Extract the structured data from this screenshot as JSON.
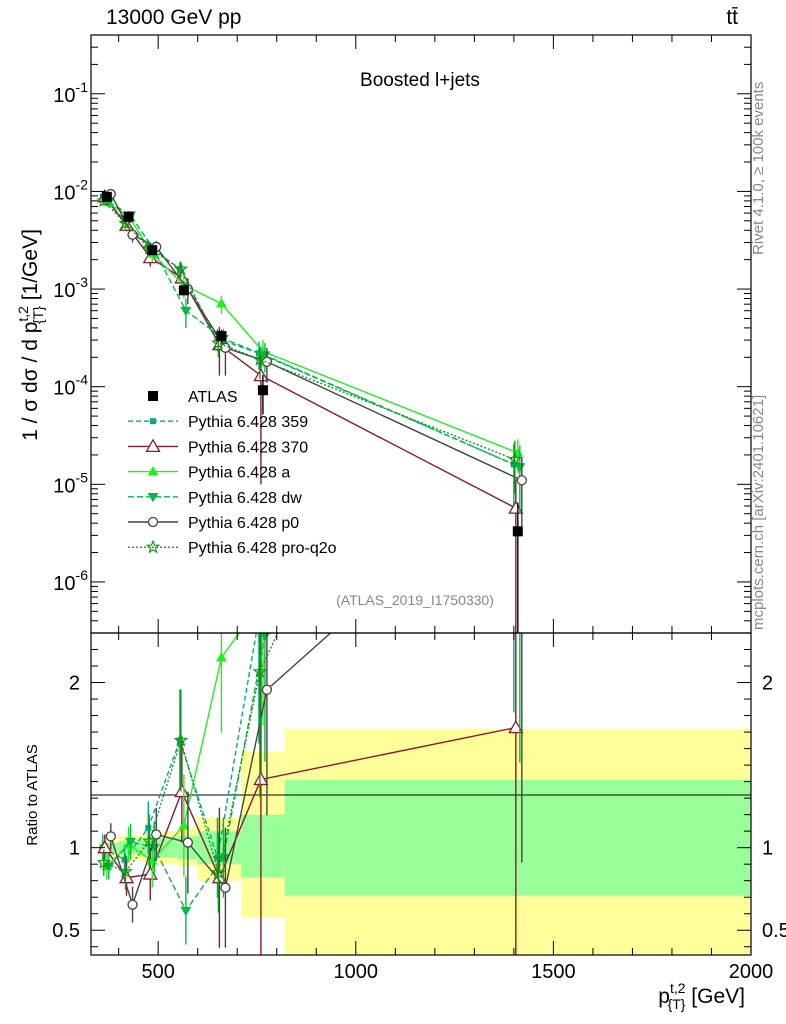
{
  "header": {
    "left": "13000 GeV pp",
    "right": "tt̄"
  },
  "side_labels": {
    "rivet": "Rivet 4.1.0, ≥ 100k events",
    "mcplots": "mcplots.cern.ch [arXiv:2401.10621]"
  },
  "analysis_id": "(ATLAS_2019_I1750330)",
  "chart_data": {
    "type": "line",
    "title": "Boosted l+jets",
    "xlabel": "p_{T}^{t,2} [GeV]",
    "x_ticks": [
      "500",
      "1000",
      "1500",
      "2000"
    ],
    "xlim": [
      330,
      2000
    ],
    "top_panel": {
      "ylabel": "1 / σ dσ / d p_{T}^{t,2} [1/GeV]",
      "yscale": "log",
      "ylim": [
        3e-07,
        0.4
      ],
      "y_ticks": [
        "10^{-6}",
        "10^{-5}",
        "10^{-4}",
        "10^{-3}",
        "10^{-2}",
        "10^{-1}"
      ]
    },
    "ratio_panel": {
      "ylabel": "Ratio to ATLAS",
      "ylim": [
        0.35,
        2.3
      ],
      "y_ticks": [
        "0.5",
        "1",
        "2"
      ],
      "bands": [
        {
          "x": [
            350,
            400
          ],
          "inner": [
            0.97,
            1.03
          ],
          "outer": [
            0.95,
            1.05
          ]
        },
        {
          "x": [
            400,
            450
          ],
          "inner": [
            0.96,
            1.04
          ],
          "outer": [
            0.93,
            1.07
          ]
        },
        {
          "x": [
            450,
            500
          ],
          "inner": [
            0.95,
            1.05
          ],
          "outer": [
            0.92,
            1.08
          ]
        },
        {
          "x": [
            500,
            550
          ],
          "inner": [
            0.94,
            1.06
          ],
          "outer": [
            0.9,
            1.1
          ]
        },
        {
          "x": [
            550,
            600
          ],
          "inner": [
            0.93,
            1.07
          ],
          "outer": [
            0.89,
            1.12
          ]
        },
        {
          "x": [
            600,
            710
          ],
          "inner": [
            0.9,
            1.1
          ],
          "outer": [
            0.8,
            1.18
          ]
        },
        {
          "x": [
            710,
            820
          ],
          "inner": [
            0.82,
            1.2
          ],
          "outer": [
            0.58,
            1.58
          ]
        },
        {
          "x": [
            820,
            2000
          ],
          "inner": [
            0.71,
            1.41
          ],
          "outer": [
            0.35,
            1.72
          ]
        }
      ]
    },
    "x": [
      370,
      425,
      485,
      565,
      660,
      765,
      1410
    ],
    "data": {
      "name": "ATLAS",
      "y": [
        0.0088,
        0.0055,
        0.0025,
        0.00097,
        0.00033,
        9.2e-05,
        3.3e-06
      ],
      "err": [
        0.0005,
        0.0004,
        0.0002,
        0.0001,
        5e-05,
        4e-05,
        3.2e-06
      ]
    },
    "series": [
      {
        "name": "Pythia 6.428 359",
        "color": "#00aa88",
        "dash": "5,3",
        "marker": "square",
        "y": [
          0.0088,
          0.0051,
          0.0028,
          0.0016,
          0.00031,
          0.00022,
          1.6e-05
        ],
        "err": [
          0.0007,
          0.0005,
          0.0004,
          0.0003,
          8e-05,
          7e-05,
          1e-05
        ]
      },
      {
        "name": "Pythia 6.428 370",
        "color": "#8b1a2e",
        "dash": "",
        "marker": "triangle-open",
        "y": [
          0.0088,
          0.0045,
          0.0021,
          0.0013,
          0.00027,
          0.00013,
          5.7e-06
        ],
        "err": [
          0.0007,
          0.0006,
          0.0004,
          0.0003,
          0.00014,
          0.00012,
          5.6e-06
        ]
      },
      {
        "name": "Pythia 6.428 a",
        "color": "#22ee22",
        "dash": "",
        "marker": "triangle",
        "y": [
          0.0078,
          0.0056,
          0.0023,
          0.0011,
          0.00071,
          0.00023,
          2.1e-05
        ],
        "err": [
          0.0007,
          0.0006,
          0.0004,
          0.0003,
          0.00015,
          7e-05,
          8e-06
        ]
      },
      {
        "name": "Pythia 6.428 dw",
        "color": "#00bb44",
        "dash": "6,3",
        "marker": "triangle-down",
        "y": [
          0.0078,
          0.0057,
          0.0025,
          0.0006,
          0.00031,
          0.00021,
          1.5e-05
        ],
        "err": [
          0.0007,
          0.0006,
          0.0004,
          0.0002,
          8e-05,
          7e-05,
          1e-05
        ]
      },
      {
        "name": "Pythia 6.428 p0",
        "color": "#444444",
        "dash": "",
        "marker": "circle-open",
        "y": [
          0.0094,
          0.0036,
          0.0027,
          0.001,
          0.00025,
          0.00018,
          1.1e-05
        ],
        "err": [
          0.0007,
          0.0006,
          0.0004,
          0.0003,
          0.00012,
          7e-05,
          8e-06
        ]
      },
      {
        "name": "Pythia 6.428 pro-q2o",
        "color": "#119911",
        "dash": "2,2",
        "marker": "star-open",
        "y": [
          0.008,
          0.0047,
          0.0026,
          0.0016,
          0.00028,
          0.00019,
          1.8e-05
        ],
        "err": [
          0.0007,
          0.0006,
          0.0004,
          0.0003,
          8e-05,
          7e-05,
          1e-05
        ]
      }
    ]
  }
}
